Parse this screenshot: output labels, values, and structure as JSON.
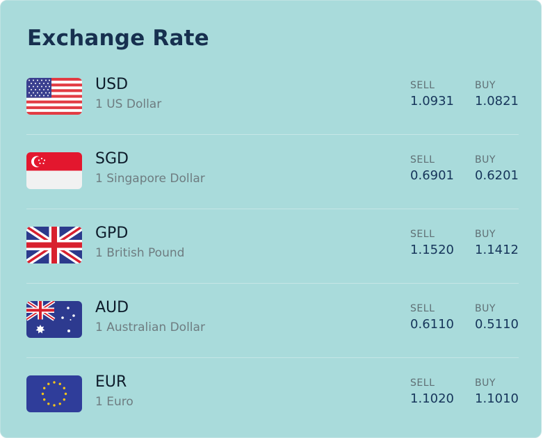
{
  "title": "Exchange Rate",
  "rates": [
    {
      "code": "USD",
      "desc": "1 US Dollar",
      "sell_label": "SELL",
      "sell": "1.0931",
      "buy_label": "BUY",
      "buy": "1.0821",
      "flag": "us-flag-icon"
    },
    {
      "code": "SGD",
      "desc": "1 Singapore Dollar",
      "sell_label": "SELL",
      "sell": "0.6901",
      "buy_label": "BUY",
      "buy": "0.6201",
      "flag": "sg-flag-icon"
    },
    {
      "code": "GPD",
      "desc": "1 British Pound",
      "sell_label": "SELL",
      "sell": "1.1520",
      "buy_label": "BUY",
      "buy": "1.1412",
      "flag": "uk-flag-icon"
    },
    {
      "code": "AUD",
      "desc": "1 Australian Dollar",
      "sell_label": "SELL",
      "sell": "0.6110",
      "buy_label": "BUY",
      "buy": "0.5110",
      "flag": "au-flag-icon"
    },
    {
      "code": "EUR",
      "desc": "1 Euro",
      "sell_label": "SELL",
      "sell": "1.1020",
      "buy_label": "BUY",
      "buy": "1.1010",
      "flag": "eu-flag-icon"
    }
  ],
  "colors": {
    "background": "#a9dbdb",
    "title": "#17304f",
    "value": "#16355a"
  }
}
